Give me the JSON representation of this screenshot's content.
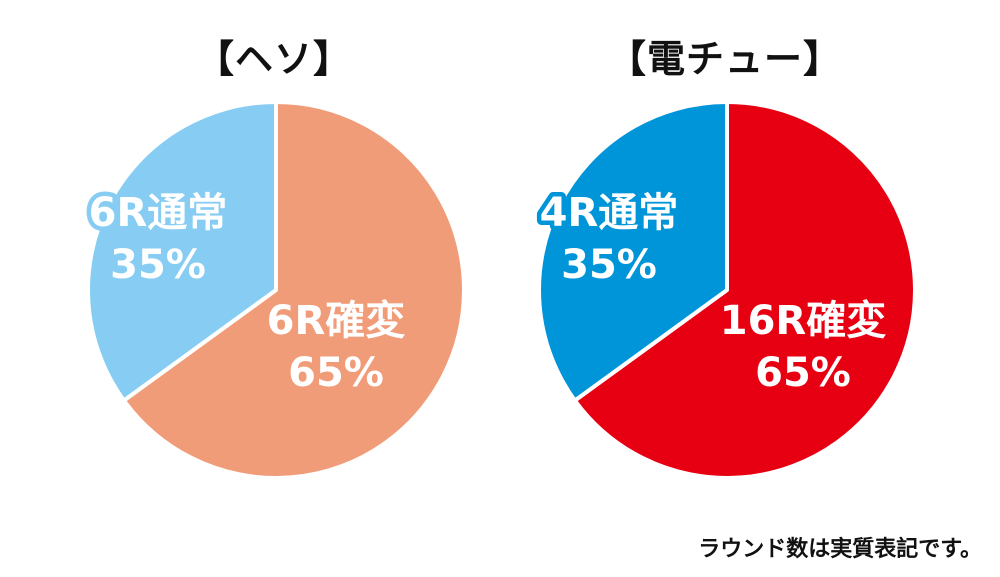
{
  "chart_data": [
    {
      "type": "pie",
      "title": "【ヘソ】",
      "slices": [
        {
          "line1": "6R確変",
          "line2": "65%",
          "value": 65,
          "color": "#f19c78",
          "outline": "#f19c78"
        },
        {
          "line1": "6R通常",
          "line2": "35%",
          "value": 35,
          "color": "#87cdf3",
          "outline": "#87cdf3"
        }
      ]
    },
    {
      "type": "pie",
      "title": "【電チュー】",
      "slices": [
        {
          "line1": "16R確変",
          "line2": "65%",
          "value": 65,
          "color": "#e60012",
          "outline": "#e60012"
        },
        {
          "line1": "4R通常",
          "line2": "35%",
          "value": 35,
          "color": "#0095d9",
          "outline": "#0095d9"
        }
      ]
    }
  ],
  "footnote": "ラウンド数は実質表記です。"
}
